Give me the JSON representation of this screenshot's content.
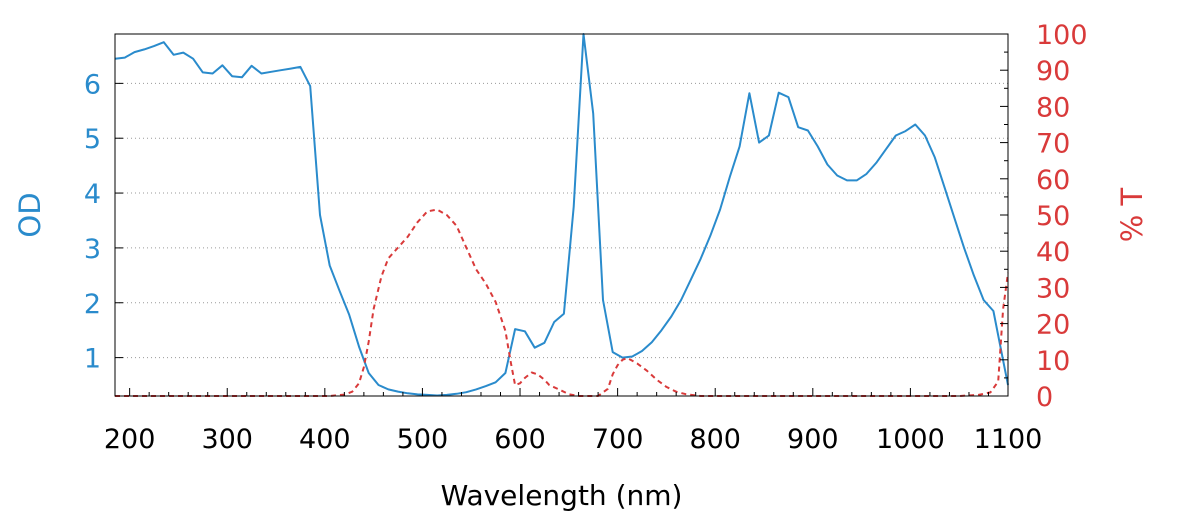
{
  "chart_data": {
    "type": "line",
    "xlabel": "Wavelength (nm)",
    "ylabel_left": "OD",
    "ylabel_right": "% T",
    "xlim": [
      185,
      1100
    ],
    "ylim_left": [
      0.3,
      6.9
    ],
    "ylim_right": [
      0,
      100
    ],
    "x_ticks": [
      200,
      300,
      400,
      500,
      600,
      700,
      800,
      900,
      1000,
      1100
    ],
    "y_left_ticks": [
      1,
      2,
      3,
      4,
      5,
      6
    ],
    "y_right_ticks": [
      0,
      10,
      20,
      30,
      40,
      50,
      60,
      70,
      80,
      90,
      100
    ],
    "grid": "horizontal dotted",
    "colors": {
      "od": "#2a8bcc",
      "transmission": "#d93a3a"
    },
    "series": [
      {
        "axis": "left",
        "style": "solid",
        "x": [
          185,
          195,
          205,
          215,
          225,
          235,
          245,
          255,
          265,
          275,
          285,
          295,
          305,
          315,
          325,
          335,
          345,
          355,
          365,
          375,
          385,
          395,
          405,
          415,
          425,
          435,
          445,
          455,
          465,
          475,
          485,
          495,
          505,
          515,
          525,
          535,
          545,
          555,
          565,
          575,
          585,
          595,
          605,
          615,
          625,
          635,
          645,
          655,
          665,
          675,
          685,
          695,
          705,
          715,
          725,
          735,
          745,
          755,
          765,
          775,
          785,
          795,
          805,
          815,
          825,
          835,
          845,
          855,
          865,
          875,
          885,
          895,
          905,
          915,
          925,
          935,
          945,
          955,
          965,
          975,
          985,
          995,
          1005,
          1015,
          1025,
          1035,
          1045,
          1055,
          1065,
          1075,
          1085,
          1095,
          1100
        ],
        "y": [
          6.45,
          6.47,
          6.57,
          6.62,
          6.68,
          6.75,
          6.52,
          6.56,
          6.45,
          6.2,
          6.18,
          6.33,
          6.13,
          6.11,
          6.32,
          6.18,
          6.21,
          6.24,
          6.27,
          6.3,
          5.95,
          3.6,
          2.68,
          2.22,
          1.78,
          1.2,
          0.72,
          0.5,
          0.42,
          0.38,
          0.35,
          0.33,
          0.32,
          0.31,
          0.32,
          0.34,
          0.37,
          0.42,
          0.48,
          0.55,
          0.72,
          1.52,
          1.48,
          1.18,
          1.27,
          1.65,
          1.8,
          3.75,
          6.9,
          5.45,
          2.05,
          1.1,
          1.0,
          1.02,
          1.12,
          1.28,
          1.5,
          1.75,
          2.05,
          2.42,
          2.8,
          3.22,
          3.7,
          4.3,
          4.85,
          5.82,
          4.92,
          5.05,
          5.83,
          5.75,
          5.2,
          5.14,
          4.85,
          4.52,
          4.32,
          4.23,
          4.23,
          4.35,
          4.55,
          4.8,
          5.05,
          5.13,
          5.25,
          5.05,
          4.65,
          4.1,
          3.55,
          3.0,
          2.5,
          2.05,
          1.85,
          0.95,
          0.5
        ]
      },
      {
        "axis": "right",
        "style": "dashed",
        "x": [
          185,
          405,
          420,
          428,
          435,
          440,
          445,
          450,
          458,
          465,
          475,
          485,
          495,
          505,
          515,
          525,
          535,
          545,
          555,
          565,
          575,
          585,
          590,
          595,
          600,
          605,
          612,
          618,
          625,
          630,
          640,
          650,
          660,
          670,
          680,
          690,
          695,
          700,
          705,
          710,
          720,
          730,
          740,
          750,
          760,
          770,
          785,
          800,
          1050,
          1070,
          1082,
          1090,
          1095,
          1100
        ],
        "y": [
          0,
          0,
          0.4,
          1.2,
          3.5,
          8,
          15,
          24,
          33,
          38,
          41,
          44,
          48,
          51,
          51.5,
          50,
          47,
          41,
          35,
          31,
          26,
          18,
          10,
          3,
          3.5,
          5,
          6.5,
          6,
          4.5,
          3,
          1.8,
          0.5,
          0,
          0,
          0,
          2,
          6,
          8.5,
          10,
          10.5,
          9,
          7,
          4.5,
          2.5,
          1.2,
          0.5,
          0,
          0,
          0,
          0.3,
          1,
          4,
          24,
          34
        ]
      }
    ]
  }
}
